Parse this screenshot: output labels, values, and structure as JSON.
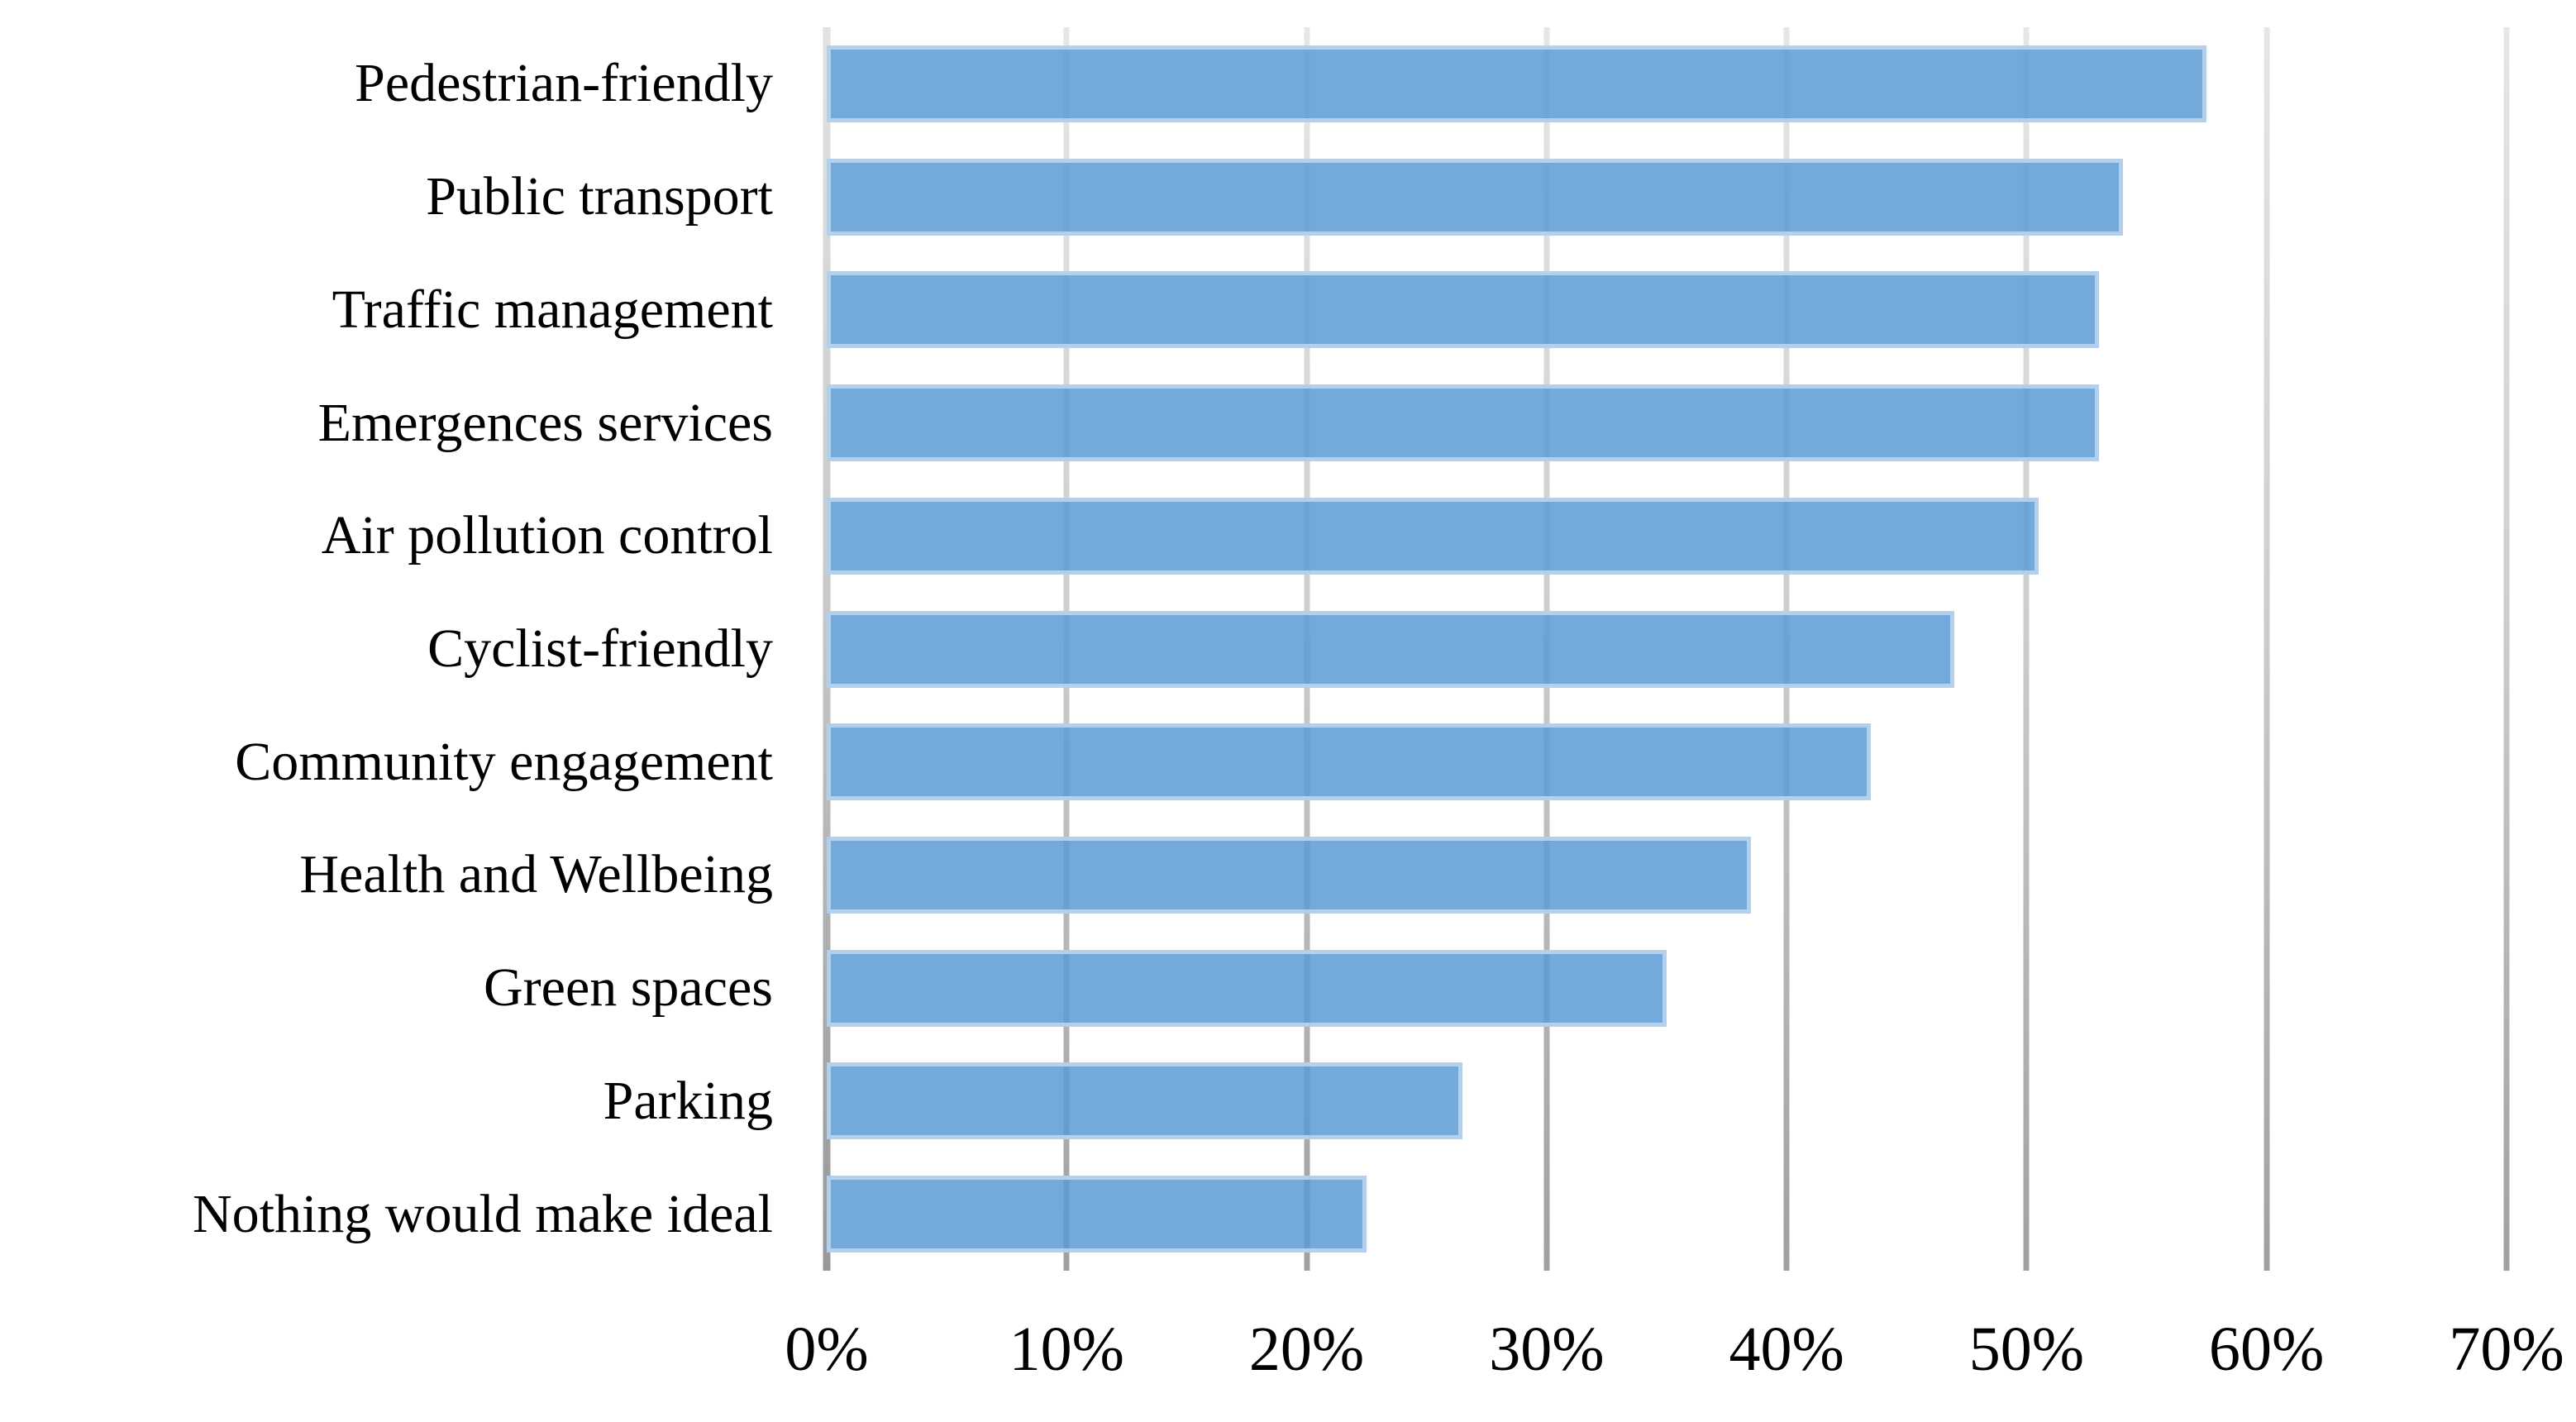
{
  "chart_data": {
    "type": "bar",
    "orientation": "horizontal",
    "title": "",
    "xlabel": "",
    "ylabel": "",
    "categories": [
      "Pedestrian-friendly",
      "Public transport",
      "Traffic management",
      "Emergences services",
      "Air pollution control",
      "Cyclist-friendly",
      "Community engagement",
      "Health and Wellbeing",
      "Green spaces",
      "Parking",
      "Nothing would make ideal"
    ],
    "values": [
      57.5,
      54,
      53,
      53,
      50.5,
      47,
      43.5,
      38.5,
      35,
      26.5,
      22.5
    ],
    "value_unit": "%",
    "xlim": [
      0,
      70
    ],
    "x_ticks": [
      "0%",
      "10%",
      "20%",
      "30%",
      "40%",
      "50%",
      "60%",
      "70%"
    ],
    "x_tick_values": [
      0,
      10,
      20,
      30,
      40,
      50,
      60,
      70
    ],
    "grid": "vertical",
    "legend": "none",
    "colors": {
      "bar_fill": "rgba(91,155,213,0.85)",
      "bar_fill_hex": "#74A9DA",
      "bar_border": "rgba(185,212,238,0.92)",
      "bar_border_hex": "#C3D8EE",
      "gridline_hex": "#BFBFBF",
      "axis_text": "#000000",
      "background": "#FFFFFF"
    }
  }
}
